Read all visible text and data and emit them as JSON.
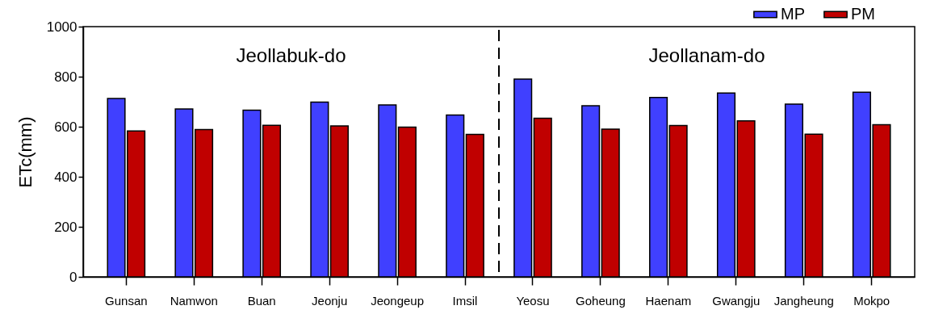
{
  "chart_data": {
    "type": "bar",
    "categories": [
      "Gunsan",
      "Namwon",
      "Buan",
      "Jeonju",
      "Jeongeup",
      "Imsil",
      "Yeosu",
      "Goheung",
      "Haenam",
      "Gwangju",
      "Jangheung",
      "Mokpo"
    ],
    "series": [
      {
        "name": "MP",
        "color": "#4040ff",
        "values": [
          713,
          671,
          666,
          698,
          687,
          647,
          790,
          684,
          717,
          735,
          690,
          738
        ]
      },
      {
        "name": "PM",
        "color": "#c00000",
        "values": [
          583,
          589,
          606,
          603,
          598,
          569,
          634,
          590,
          605,
          623,
          570,
          608
        ]
      }
    ],
    "ylabel": "ETc(mm)",
    "ylim": [
      0,
      1000
    ],
    "yticks": [
      0,
      200,
      400,
      600,
      800,
      1000
    ],
    "annotations": [
      "Jeollabuk-do",
      "Jeollanam-do"
    ],
    "legend": "top right",
    "grid": false
  }
}
